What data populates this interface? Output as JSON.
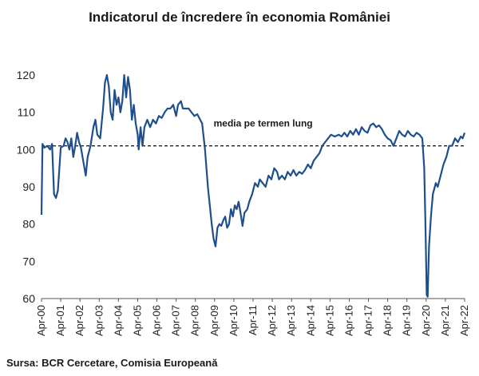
{
  "chart_data": {
    "type": "line",
    "title": "Indicatorul de încredere în economia României",
    "source": "Sursa: BCR Cercetare, Comisia Europeană",
    "xlabel": "",
    "ylabel": "",
    "ylim": [
      60,
      120
    ],
    "yticks": [
      60,
      70,
      80,
      90,
      100,
      110,
      120
    ],
    "xticks": [
      "Apr-00",
      "Apr-01",
      "Apr-02",
      "Apr-03",
      "Apr-04",
      "Apr-05",
      "Apr-06",
      "Apr-07",
      "Apr-08",
      "Apr-09",
      "Apr-10",
      "Apr-11",
      "Apr-12",
      "Apr-13",
      "Apr-14",
      "Apr-15",
      "Apr-16",
      "Apr-17",
      "Apr-18",
      "Apr-19",
      "Apr-20",
      "Apr-21",
      "Apr-22"
    ],
    "grid": false,
    "reference_line": {
      "label": "media pe termen lung",
      "value": 101,
      "style": "dashed"
    },
    "series": [
      {
        "color": "#1f4e8c",
        "points": [
          [
            2000.25,
            82.5
          ],
          [
            2000.3,
            101.5
          ],
          [
            2000.4,
            100.5
          ],
          [
            2000.55,
            101
          ],
          [
            2000.7,
            100
          ],
          [
            2000.8,
            101.5
          ],
          [
            2000.9,
            88
          ],
          [
            2001.0,
            87
          ],
          [
            2001.1,
            89
          ],
          [
            2001.25,
            100.5
          ],
          [
            2001.4,
            101
          ],
          [
            2001.5,
            103
          ],
          [
            2001.6,
            102
          ],
          [
            2001.7,
            100
          ],
          [
            2001.8,
            103
          ],
          [
            2001.9,
            98
          ],
          [
            2002.0,
            101
          ],
          [
            2002.1,
            104.5
          ],
          [
            2002.2,
            102
          ],
          [
            2002.3,
            100.5
          ],
          [
            2002.45,
            96
          ],
          [
            2002.55,
            93
          ],
          [
            2002.65,
            98
          ],
          [
            2002.8,
            101
          ],
          [
            2002.95,
            106
          ],
          [
            2003.05,
            108
          ],
          [
            2003.15,
            104
          ],
          [
            2003.3,
            103
          ],
          [
            2003.45,
            111
          ],
          [
            2003.55,
            118
          ],
          [
            2003.65,
            120
          ],
          [
            2003.75,
            117
          ],
          [
            2003.85,
            110
          ],
          [
            2003.95,
            108
          ],
          [
            2004.05,
            116
          ],
          [
            2004.15,
            112
          ],
          [
            2004.25,
            114
          ],
          [
            2004.35,
            110
          ],
          [
            2004.45,
            113
          ],
          [
            2004.55,
            120
          ],
          [
            2004.65,
            114
          ],
          [
            2004.75,
            119.5
          ],
          [
            2004.85,
            116
          ],
          [
            2004.95,
            108
          ],
          [
            2005.05,
            112
          ],
          [
            2005.15,
            107
          ],
          [
            2005.25,
            104
          ],
          [
            2005.3,
            100
          ],
          [
            2005.4,
            106
          ],
          [
            2005.5,
            101
          ],
          [
            2005.6,
            106
          ],
          [
            2005.75,
            108
          ],
          [
            2005.9,
            106
          ],
          [
            2006.05,
            108
          ],
          [
            2006.2,
            107
          ],
          [
            2006.35,
            109
          ],
          [
            2006.5,
            108.5
          ],
          [
            2006.65,
            110
          ],
          [
            2006.8,
            111
          ],
          [
            2006.95,
            111
          ],
          [
            2007.1,
            112
          ],
          [
            2007.25,
            109
          ],
          [
            2007.35,
            112
          ],
          [
            2007.5,
            113
          ],
          [
            2007.6,
            111
          ],
          [
            2007.75,
            111
          ],
          [
            2007.9,
            111
          ],
          [
            2008.05,
            110
          ],
          [
            2008.2,
            109
          ],
          [
            2008.35,
            109.5
          ],
          [
            2008.5,
            108
          ],
          [
            2008.6,
            107
          ],
          [
            2008.75,
            100
          ],
          [
            2008.9,
            90
          ],
          [
            2009.0,
            85
          ],
          [
            2009.1,
            80
          ],
          [
            2009.2,
            76
          ],
          [
            2009.3,
            74
          ],
          [
            2009.4,
            79
          ],
          [
            2009.5,
            80
          ],
          [
            2009.6,
            79.5
          ],
          [
            2009.7,
            81
          ],
          [
            2009.8,
            82
          ],
          [
            2009.9,
            79
          ],
          [
            2010.0,
            80
          ],
          [
            2010.1,
            84
          ],
          [
            2010.2,
            82
          ],
          [
            2010.3,
            85
          ],
          [
            2010.4,
            84
          ],
          [
            2010.5,
            86
          ],
          [
            2010.6,
            83
          ],
          [
            2010.7,
            79.5
          ],
          [
            2010.8,
            83
          ],
          [
            2010.95,
            84
          ],
          [
            2011.05,
            86
          ],
          [
            2011.2,
            88
          ],
          [
            2011.35,
            91
          ],
          [
            2011.5,
            90
          ],
          [
            2011.6,
            92
          ],
          [
            2011.75,
            91
          ],
          [
            2011.9,
            90
          ],
          [
            2012.05,
            93
          ],
          [
            2012.2,
            92
          ],
          [
            2012.35,
            95
          ],
          [
            2012.5,
            94
          ],
          [
            2012.6,
            92
          ],
          [
            2012.75,
            93
          ],
          [
            2012.9,
            92
          ],
          [
            2013.05,
            94
          ],
          [
            2013.2,
            93
          ],
          [
            2013.35,
            94.5
          ],
          [
            2013.5,
            93
          ],
          [
            2013.65,
            94
          ],
          [
            2013.8,
            93.5
          ],
          [
            2013.95,
            94.5
          ],
          [
            2014.1,
            96
          ],
          [
            2014.25,
            95
          ],
          [
            2014.4,
            97
          ],
          [
            2014.55,
            98
          ],
          [
            2014.7,
            99
          ],
          [
            2014.85,
            101
          ],
          [
            2015.0,
            102
          ],
          [
            2015.15,
            103
          ],
          [
            2015.3,
            104
          ],
          [
            2015.5,
            103.5
          ],
          [
            2015.7,
            104
          ],
          [
            2015.85,
            103.5
          ],
          [
            2016.0,
            104.5
          ],
          [
            2016.15,
            103.5
          ],
          [
            2016.3,
            105
          ],
          [
            2016.45,
            104
          ],
          [
            2016.6,
            105.5
          ],
          [
            2016.75,
            104
          ],
          [
            2016.9,
            106
          ],
          [
            2017.05,
            105
          ],
          [
            2017.2,
            104.5
          ],
          [
            2017.35,
            106.5
          ],
          [
            2017.5,
            107
          ],
          [
            2017.65,
            106
          ],
          [
            2017.8,
            106.5
          ],
          [
            2017.95,
            105.5
          ],
          [
            2018.1,
            104
          ],
          [
            2018.25,
            103
          ],
          [
            2018.4,
            102.5
          ],
          [
            2018.55,
            101
          ],
          [
            2018.7,
            103
          ],
          [
            2018.85,
            105
          ],
          [
            2019.0,
            104
          ],
          [
            2019.15,
            103.5
          ],
          [
            2019.3,
            105
          ],
          [
            2019.45,
            104
          ],
          [
            2019.6,
            103.5
          ],
          [
            2019.75,
            104.5
          ],
          [
            2019.9,
            104
          ],
          [
            2020.05,
            103
          ],
          [
            2020.15,
            95
          ],
          [
            2020.22,
            78
          ],
          [
            2020.28,
            61
          ],
          [
            2020.33,
            60.5
          ],
          [
            2020.4,
            74
          ],
          [
            2020.5,
            82
          ],
          [
            2020.6,
            88
          ],
          [
            2020.75,
            91
          ],
          [
            2020.85,
            90
          ],
          [
            2021.0,
            93
          ],
          [
            2021.15,
            96
          ],
          [
            2021.3,
            98
          ],
          [
            2021.45,
            101
          ],
          [
            2021.6,
            101
          ],
          [
            2021.75,
            103
          ],
          [
            2021.9,
            102
          ],
          [
            2022.05,
            103.5
          ],
          [
            2022.15,
            103
          ],
          [
            2022.25,
            104.5
          ]
        ]
      }
    ]
  }
}
